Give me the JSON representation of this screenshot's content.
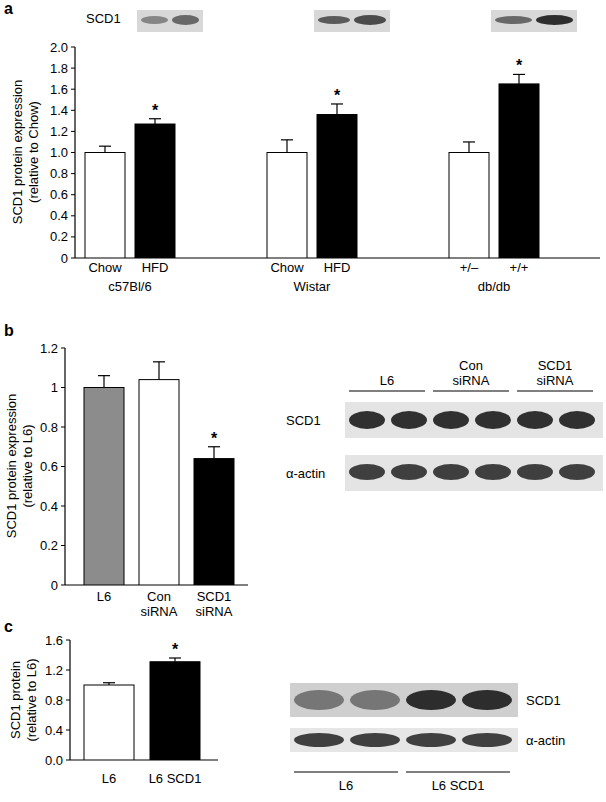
{
  "chart_data": [
    {
      "type": "bar",
      "panel_label": "a",
      "y_label": "SCD1 protein expression (relative to Chow)",
      "categories": [
        "Chow",
        "HFD",
        "Chow",
        "HFD",
        "+/–",
        "+/+"
      ],
      "groups": [
        "c57Bl/6",
        "c57Bl/6",
        "Wistar",
        "Wistar",
        "db/db",
        "db/db"
      ],
      "values": [
        1.0,
        1.27,
        1.0,
        1.36,
        1.0,
        1.65
      ],
      "errors": [
        0.06,
        0.05,
        0.12,
        0.1,
        0.1,
        0.09
      ],
      "colors": [
        "#ffffff",
        "#000000",
        "#ffffff",
        "#000000",
        "#ffffff",
        "#000000"
      ],
      "significance": [
        null,
        "*",
        null,
        "*",
        null,
        "*"
      ],
      "ylim": [
        0,
        2
      ],
      "yticks": [
        0,
        0.2,
        0.4,
        0.6,
        0.8,
        {
          "value": 1,
          "label": "1.0"
        },
        1.2,
        1.4,
        1.6,
        1.8,
        {
          "value": 2,
          "label": "2.0"
        }
      ],
      "blot": {
        "rows": [
          "SCD1"
        ]
      }
    },
    {
      "type": "bar",
      "panel_label": "b",
      "y_label": "SCD1 protein expression (relative to L6)",
      "categories": [
        "L6",
        "Con siRNA",
        "SCD1 siRNA"
      ],
      "values": [
        1.0,
        1.04,
        0.64
      ],
      "errors": [
        0.06,
        0.09,
        0.06
      ],
      "colors": [
        "#8c8c8c",
        "#ffffff",
        "#000000"
      ],
      "significance": [
        null,
        null,
        "*"
      ],
      "ylim": [
        0,
        1.2
      ],
      "yticks": [
        0,
        0.2,
        0.4,
        0.6,
        0.8,
        1,
        1.2
      ],
      "blot": {
        "rows": [
          "SCD1",
          "α-actin"
        ],
        "lanes": [
          "L6",
          "Con siRNA",
          "SCD1 siRNA"
        ]
      }
    },
    {
      "type": "bar",
      "panel_label": "c",
      "y_label": "SCD1 protein (relative to L6)",
      "categories": [
        "L6",
        "L6 SCD1"
      ],
      "values": [
        1.0,
        1.31
      ],
      "errors": [
        0.03,
        0.05
      ],
      "colors": [
        "#ffffff",
        "#000000"
      ],
      "significance": [
        null,
        "*"
      ],
      "ylim": [
        0,
        1.6
      ],
      "yticks": [
        {
          "value": 0,
          "label": "0.0"
        },
        0.4,
        0.8,
        1.2,
        1.6
      ],
      "blot": {
        "rows": [
          "SCD1",
          "α-actin"
        ],
        "lanes": [
          "L6",
          "L6 SCD1"
        ]
      }
    }
  ]
}
